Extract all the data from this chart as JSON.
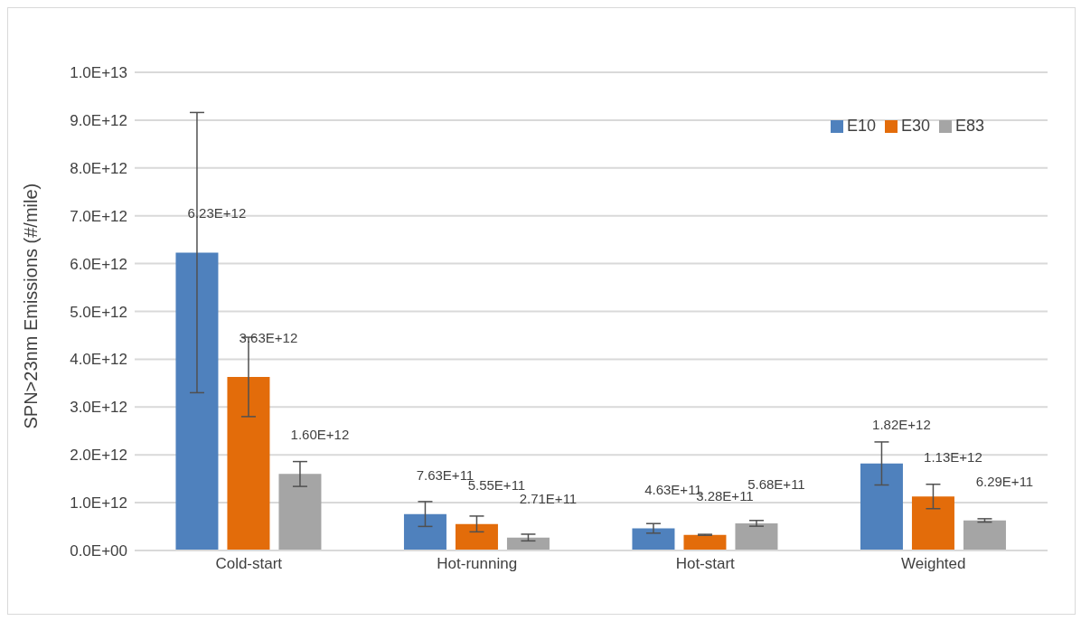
{
  "chart_data": {
    "type": "bar",
    "ylabel": "SPN>23nm Emissions (#/mile)",
    "categories": [
      "Cold-start",
      "Hot-running",
      "Hot-start",
      "Weighted"
    ],
    "series": [
      {
        "name": "E10",
        "color": "#4f81bd",
        "values": [
          6230000000000.0,
          763000000000.0,
          463000000000.0,
          1820000000000.0
        ],
        "errors": [
          2930000000000.0,
          260000000000.0,
          100000000000.0,
          450000000000.0
        ],
        "value_labels": [
          "6.23E+12",
          "7.63E+11",
          "4.63E+11",
          "1.82E+12"
        ]
      },
      {
        "name": "E30",
        "color": "#e36c0a",
        "values": [
          3630000000000.0,
          555000000000.0,
          328000000000.0,
          1130000000000.0
        ],
        "errors": [
          830000000000.0,
          165000000000.0,
          10000000000.0,
          255000000000.0
        ],
        "value_labels": [
          "3.63E+12",
          "5.55E+11",
          "3.28E+11",
          "1.13E+12"
        ]
      },
      {
        "name": "E83",
        "color": "#a5a5a5",
        "values": [
          1600000000000.0,
          271000000000.0,
          568000000000.0,
          629000000000.0
        ],
        "errors": [
          260000000000.0,
          70000000000.0,
          60000000000.0,
          35000000000.0
        ],
        "value_labels": [
          "1.60E+12",
          "2.71E+11",
          "5.68E+11",
          "6.29E+11"
        ]
      }
    ],
    "ylim": [
      0,
      10000000000000.0
    ],
    "yticks": [
      {
        "value": 0,
        "label": "0.0E+00"
      },
      {
        "value": 1000000000000.0,
        "label": "1.0E+12"
      },
      {
        "value": 2000000000000.0,
        "label": "2.0E+12"
      },
      {
        "value": 3000000000000.0,
        "label": "3.0E+12"
      },
      {
        "value": 4000000000000.0,
        "label": "4.0E+12"
      },
      {
        "value": 5000000000000.0,
        "label": "5.0E+12"
      },
      {
        "value": 6000000000000.0,
        "label": "6.0E+12"
      },
      {
        "value": 7000000000000.0,
        "label": "7.0E+12"
      },
      {
        "value": 8000000000000.0,
        "label": "8.0E+12"
      },
      {
        "value": 9000000000000.0,
        "label": "9.0E+12"
      },
      {
        "value": 10000000000000.0,
        "label": "1.0E+13"
      }
    ],
    "grid": "y",
    "legend": "top right"
  }
}
